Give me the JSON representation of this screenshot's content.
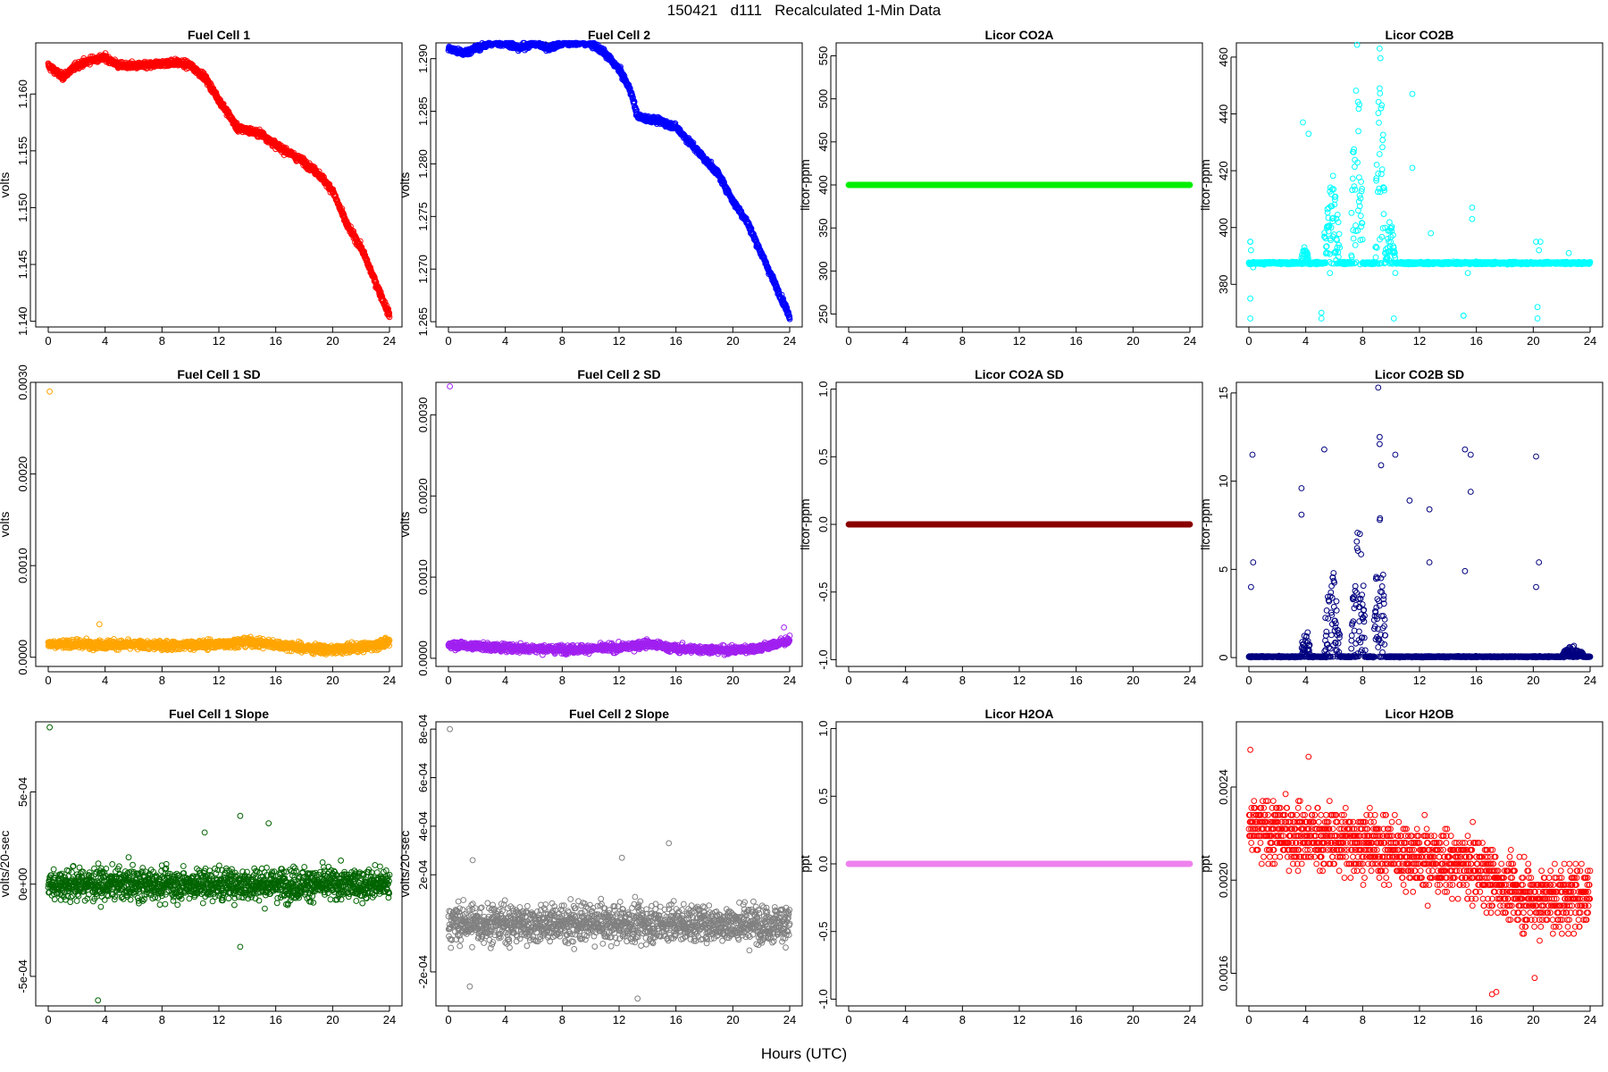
{
  "title": "150421   d111   Recalculated 1-Min Data",
  "xlabel": "Hours (UTC)",
  "chart_data": [
    {
      "type": "scatter",
      "title": "Fuel Cell 1",
      "ylabel": "volts",
      "color": "#ff0000",
      "xlim": [
        0,
        24
      ],
      "ylim": [
        1.1395,
        1.1645
      ],
      "xticks": [
        "0",
        "4",
        "8",
        "12",
        "16",
        "20",
        "24"
      ],
      "yticks": [
        {
          "v": 1.14,
          "label": "1.140"
        },
        {
          "v": 1.145,
          "label": "1.145"
        },
        {
          "v": 1.15,
          "label": "1.150"
        },
        {
          "v": 1.155,
          "label": "1.155"
        },
        {
          "v": 1.16,
          "label": "1.160"
        }
      ],
      "trend": {
        "x": [
          0,
          0.5,
          1,
          2,
          3,
          4,
          5,
          6,
          7,
          8,
          9,
          10,
          11,
          12,
          12.8,
          13.3,
          14,
          15,
          16,
          17,
          18,
          19,
          20,
          21,
          22,
          23,
          24
        ],
        "y": [
          1.1625,
          1.162,
          1.1615,
          1.1625,
          1.163,
          1.1632,
          1.1625,
          1.1625,
          1.1625,
          1.1627,
          1.1628,
          1.1625,
          1.1615,
          1.1595,
          1.158,
          1.157,
          1.1568,
          1.1565,
          1.1555,
          1.1548,
          1.154,
          1.153,
          1.1515,
          1.1485,
          1.1465,
          1.1435,
          1.1405
        ]
      },
      "noise": 0.0003,
      "outliers": []
    },
    {
      "type": "scatter",
      "title": "Fuel Cell 2",
      "ylabel": "volts",
      "color": "#0000ff",
      "xlim": [
        0,
        24
      ],
      "ylim": [
        1.2645,
        1.2915
      ],
      "xticks": [
        "0",
        "4",
        "8",
        "12",
        "16",
        "20",
        "24"
      ],
      "yticks": [
        {
          "v": 1.265,
          "label": "1.265"
        },
        {
          "v": 1.27,
          "label": "1.270"
        },
        {
          "v": 1.275,
          "label": "1.275"
        },
        {
          "v": 1.28,
          "label": "1.280"
        },
        {
          "v": 1.285,
          "label": "1.285"
        },
        {
          "v": 1.29,
          "label": "1.290"
        }
      ],
      "trend": {
        "x": [
          0,
          1,
          2,
          3,
          4,
          5,
          6,
          7,
          8,
          9,
          10,
          11,
          12,
          12.8,
          13.3,
          14,
          15,
          16,
          17,
          18,
          19,
          20,
          21,
          22,
          23,
          24
        ],
        "y": [
          1.291,
          1.2905,
          1.291,
          1.2915,
          1.2915,
          1.291,
          1.2915,
          1.291,
          1.2915,
          1.2915,
          1.2915,
          1.2905,
          1.289,
          1.287,
          1.2845,
          1.2843,
          1.284,
          1.2835,
          1.282,
          1.2805,
          1.279,
          1.2765,
          1.2745,
          1.2715,
          1.2685,
          1.2655
        ]
      },
      "noise": 0.0003,
      "outliers": []
    },
    {
      "type": "scatter",
      "title": "Licor CO2A",
      "ylabel": "licor-ppm",
      "color": "#00ee00",
      "xlim": [
        0,
        24
      ],
      "ylim": [
        235,
        565
      ],
      "xticks": [
        "0",
        "4",
        "8",
        "12",
        "16",
        "20",
        "24"
      ],
      "yticks": [
        {
          "v": 250,
          "label": "250"
        },
        {
          "v": 300,
          "label": "300"
        },
        {
          "v": 350,
          "label": "350"
        },
        {
          "v": 400,
          "label": "400"
        },
        {
          "v": 450,
          "label": "450"
        },
        {
          "v": 500,
          "label": "500"
        },
        {
          "v": 550,
          "label": "550"
        }
      ],
      "trend": {
        "x": [
          0,
          24
        ],
        "y": [
          400,
          400
        ]
      },
      "noise": 0,
      "outliers": []
    },
    {
      "type": "scatter",
      "title": "Licor CO2B",
      "ylabel": "licor-ppm",
      "color": "#00ffff",
      "xlim": [
        0,
        24
      ],
      "ylim": [
        365,
        465
      ],
      "xticks": [
        "0",
        "4",
        "8",
        "12",
        "16",
        "20",
        "24"
      ],
      "yticks": [
        {
          "v": 380,
          "label": "380"
        },
        {
          "v": 400,
          "label": "400"
        },
        {
          "v": 420,
          "label": "420"
        },
        {
          "v": 440,
          "label": "440"
        },
        {
          "v": 460,
          "label": "460"
        }
      ],
      "trend": {
        "x": [
          0,
          24
        ],
        "y": [
          387.5,
          387.5
        ]
      },
      "noise": 0.4,
      "bursts": [
        {
          "x0": 3.7,
          "x1": 4.2,
          "amp": 5
        },
        {
          "x0": 5.3,
          "x1": 6.4,
          "amp": 25
        },
        {
          "x0": 7.2,
          "x1": 8.0,
          "amp": 60
        },
        {
          "x0": 8.9,
          "x1": 9.6,
          "amp": 55
        },
        {
          "x0": 9.6,
          "x1": 10.3,
          "amp": 12
        }
      ],
      "outliers": [
        {
          "x": 0.1,
          "y": 395
        },
        {
          "x": 0.1,
          "y": 395
        },
        {
          "x": 0.15,
          "y": 392
        },
        {
          "x": 0.1,
          "y": 375
        },
        {
          "x": 0.1,
          "y": 368
        },
        {
          "x": 0.3,
          "y": 386
        },
        {
          "x": 3.8,
          "y": 437
        },
        {
          "x": 4.2,
          "y": 433
        },
        {
          "x": 5.1,
          "y": 368
        },
        {
          "x": 5.1,
          "y": 370
        },
        {
          "x": 5.7,
          "y": 384
        },
        {
          "x": 9.2,
          "y": 463
        },
        {
          "x": 9.2,
          "y": 449
        },
        {
          "x": 10.2,
          "y": 368
        },
        {
          "x": 10.3,
          "y": 384
        },
        {
          "x": 11.5,
          "y": 447
        },
        {
          "x": 11.5,
          "y": 421
        },
        {
          "x": 12.8,
          "y": 398
        },
        {
          "x": 15.1,
          "y": 369
        },
        {
          "x": 15.1,
          "y": 369
        },
        {
          "x": 15.4,
          "y": 384
        },
        {
          "x": 15.7,
          "y": 403
        },
        {
          "x": 15.7,
          "y": 407
        },
        {
          "x": 20.2,
          "y": 395
        },
        {
          "x": 20.3,
          "y": 368
        },
        {
          "x": 20.3,
          "y": 372
        },
        {
          "x": 20.5,
          "y": 395
        },
        {
          "x": 20.4,
          "y": 392
        },
        {
          "x": 22.5,
          "y": 391
        }
      ]
    },
    {
      "type": "scatter",
      "title": "Fuel Cell 1 SD",
      "ylabel": "volts",
      "color": "#ffa500",
      "xlim": [
        0,
        24
      ],
      "ylim": [
        -0.0001,
        0.003
      ],
      "xticks": [
        "0",
        "4",
        "8",
        "12",
        "16",
        "20",
        "24"
      ],
      "yticks": [
        {
          "v": 0,
          "label": "0.0000"
        },
        {
          "v": 0.001,
          "label": "0.0010"
        },
        {
          "v": 0.002,
          "label": "0.0020"
        },
        {
          "v": 0.003,
          "label": "0.0030"
        }
      ],
      "trend": {
        "x": [
          0,
          4,
          8,
          12,
          14,
          16,
          18,
          20,
          22,
          24
        ],
        "y": [
          0.00015,
          0.00014,
          0.00013,
          0.00014,
          0.00017,
          0.00014,
          0.0001,
          8e-05,
          0.00011,
          0.00016
        ]
      },
      "noise": 5e-05,
      "outliers": [
        {
          "x": 0.1,
          "y": 0.0029
        },
        {
          "x": 3.6,
          "y": 0.00036
        }
      ]
    },
    {
      "type": "scatter",
      "title": "Fuel Cell 2 SD",
      "ylabel": "volts",
      "color": "#a020f0",
      "xlim": [
        0,
        24
      ],
      "ylim": [
        -0.0001,
        0.0034
      ],
      "xticks": [
        "0",
        "4",
        "8",
        "12",
        "16",
        "20",
        "24"
      ],
      "yticks": [
        {
          "v": 0,
          "label": "0.0000"
        },
        {
          "v": 0.001,
          "label": "0.0010"
        },
        {
          "v": 0.002,
          "label": "0.0020"
        },
        {
          "v": 0.003,
          "label": "0.0030"
        }
      ],
      "trend": {
        "x": [
          0,
          4,
          8,
          12,
          14,
          16,
          20,
          22,
          24
        ],
        "y": [
          0.00017,
          0.00013,
          0.00011,
          0.00013,
          0.00018,
          0.00012,
          0.0001,
          0.00013,
          0.00022
        ]
      },
      "noise": 5e-05,
      "outliers": [
        {
          "x": 0.1,
          "y": 0.00335
        },
        {
          "x": 23.6,
          "y": 0.00038
        }
      ]
    },
    {
      "type": "scatter",
      "title": "Licor CO2A SD",
      "ylabel": "licor-ppm",
      "color": "#8b0000",
      "xlim": [
        0,
        24
      ],
      "ylim": [
        -1.05,
        1.05
      ],
      "xticks": [
        "0",
        "4",
        "8",
        "12",
        "16",
        "20",
        "24"
      ],
      "yticks": [
        {
          "v": -1,
          "label": "-1.0"
        },
        {
          "v": -0.5,
          "label": "-0.5"
        },
        {
          "v": 0,
          "label": "0.0"
        },
        {
          "v": 0.5,
          "label": "0.5"
        },
        {
          "v": 1,
          "label": "1.0"
        }
      ],
      "trend": {
        "x": [
          0,
          24
        ],
        "y": [
          0,
          0
        ]
      },
      "noise": 0,
      "outliers": []
    },
    {
      "type": "scatter",
      "title": "Licor CO2B SD",
      "ylabel": "licor-ppm",
      "color": "#000080",
      "xlim": [
        0,
        24
      ],
      "ylim": [
        -0.5,
        15.6
      ],
      "xticks": [
        "0",
        "4",
        "8",
        "12",
        "16",
        "20",
        "24"
      ],
      "yticks": [
        {
          "v": 0,
          "label": "0"
        },
        {
          "v": 5,
          "label": "5"
        },
        {
          "v": 10,
          "label": "10"
        },
        {
          "v": 15,
          "label": "15"
        }
      ],
      "trend": {
        "x": [
          0,
          24
        ],
        "y": [
          0.05,
          0.05
        ]
      },
      "noise": 0.03,
      "bursts": [
        {
          "x0": 3.7,
          "x1": 4.3,
          "amp": 1.5
        },
        {
          "x0": 5.3,
          "x1": 6.4,
          "amp": 4
        },
        {
          "x0": 7.2,
          "x1": 8.2,
          "amp": 6
        },
        {
          "x0": 8.8,
          "x1": 9.6,
          "amp": 6
        },
        {
          "x0": 22,
          "x1": 23.5,
          "amp": 0.5
        }
      ],
      "outliers": [
        {
          "x": 0.15,
          "y": 4
        },
        {
          "x": 0.3,
          "y": 5.4
        },
        {
          "x": 0.25,
          "y": 11.5
        },
        {
          "x": 3.7,
          "y": 9.6
        },
        {
          "x": 3.7,
          "y": 8.1
        },
        {
          "x": 5.3,
          "y": 11.8
        },
        {
          "x": 9.1,
          "y": 15.3
        },
        {
          "x": 9.2,
          "y": 12.5
        },
        {
          "x": 9.2,
          "y": 12.1
        },
        {
          "x": 9.3,
          "y": 10.9
        },
        {
          "x": 10.3,
          "y": 11.5
        },
        {
          "x": 11.3,
          "y": 8.9
        },
        {
          "x": 12.7,
          "y": 8.4
        },
        {
          "x": 12.7,
          "y": 5.4
        },
        {
          "x": 15.2,
          "y": 11.8
        },
        {
          "x": 15.6,
          "y": 11.5
        },
        {
          "x": 15.6,
          "y": 9.4
        },
        {
          "x": 20.2,
          "y": 11.4
        },
        {
          "x": 20.2,
          "y": 4
        },
        {
          "x": 20.4,
          "y": 5.4
        },
        {
          "x": 15.2,
          "y": 4.9
        }
      ]
    },
    {
      "type": "scatter",
      "title": "Fuel Cell 1 Slope",
      "ylabel": "volts/20-sec",
      "color": "#006400",
      "xlim": [
        0,
        24
      ],
      "ylim": [
        -0.00066,
        0.00088
      ],
      "xticks": [
        "0",
        "4",
        "8",
        "12",
        "16",
        "20",
        "24"
      ],
      "yticks": [
        {
          "v": -0.0005,
          "label": "-5e-04"
        },
        {
          "v": 0,
          "label": "0e+00"
        },
        {
          "v": 0.0005,
          "label": "5e-04"
        }
      ],
      "trend": {
        "x": [
          0,
          24
        ],
        "y": [
          0,
          0
        ]
      },
      "noise": 9e-05,
      "outliers": [
        {
          "x": 0.1,
          "y": 0.00085
        },
        {
          "x": 3.5,
          "y": -0.00063
        },
        {
          "x": 13.5,
          "y": 0.00037
        },
        {
          "x": 15.5,
          "y": 0.00033
        },
        {
          "x": 11,
          "y": 0.00028
        },
        {
          "x": 13.5,
          "y": -0.00034
        }
      ]
    },
    {
      "type": "scatter",
      "title": "Fuel Cell 2 Slope",
      "ylabel": "volts/20-sec",
      "color": "#808080",
      "xlim": [
        0,
        24
      ],
      "ylim": [
        -0.00034,
        0.00083
      ],
      "xticks": [
        "0",
        "4",
        "8",
        "12",
        "16",
        "20",
        "24"
      ],
      "yticks": [
        {
          "v": -0.0002,
          "label": "-2e-04"
        },
        {
          "v": 0.0002,
          "label": "2e-04"
        },
        {
          "v": 0.0004,
          "label": "4e-04"
        },
        {
          "v": 0.0006,
          "label": "6e-04"
        },
        {
          "v": 0.0008,
          "label": "8e-04"
        }
      ],
      "trend": {
        "x": [
          0,
          24
        ],
        "y": [
          0,
          0
        ]
      },
      "noise": 8e-05,
      "outliers": [
        {
          "x": 0.1,
          "y": 0.0008
        },
        {
          "x": 15.5,
          "y": 0.00033
        },
        {
          "x": 13.3,
          "y": -0.00031
        },
        {
          "x": 1.5,
          "y": -0.00026
        },
        {
          "x": 1.7,
          "y": 0.00026
        },
        {
          "x": 12.2,
          "y": 0.00027
        }
      ]
    },
    {
      "type": "scatter",
      "title": "Licor H2OA",
      "ylabel": "ppt",
      "color": "#ee82ee",
      "xlim": [
        0,
        24
      ],
      "ylim": [
        -1.05,
        1.05
      ],
      "xticks": [
        "0",
        "4",
        "8",
        "12",
        "16",
        "20",
        "24"
      ],
      "yticks": [
        {
          "v": -1,
          "label": "-1.0"
        },
        {
          "v": -0.5,
          "label": "-0.5"
        },
        {
          "v": 0,
          "label": "0.0"
        },
        {
          "v": 0.5,
          "label": "0.5"
        },
        {
          "v": 1,
          "label": "1.0"
        }
      ],
      "trend": {
        "x": [
          0,
          24
        ],
        "y": [
          0,
          0
        ]
      },
      "noise": 0,
      "outliers": []
    },
    {
      "type": "scatter",
      "title": "Licor H2OB",
      "ylabel": "ppt",
      "color": "#ff0000",
      "xlim": [
        0,
        24
      ],
      "ylim": [
        0.00146,
        0.00268
      ],
      "xticks": [
        "0",
        "4",
        "8",
        "12",
        "16",
        "20",
        "24"
      ],
      "yticks": [
        {
          "v": 0.0016,
          "label": "0.0016"
        },
        {
          "v": 0.002,
          "label": "0.0020"
        },
        {
          "v": 0.0024,
          "label": "0.0024"
        }
      ],
      "trend": {
        "x": [
          0,
          4,
          8,
          12,
          16,
          18,
          20,
          22,
          24
        ],
        "y": [
          0.00222,
          0.00219,
          0.00216,
          0.0021,
          0.00205,
          0.00197,
          0.00192,
          0.00192,
          0.00195
        ]
      },
      "noise": 0.00014,
      "quant": 3e-05,
      "outliers": [
        {
          "x": 0.1,
          "y": 0.00256
        },
        {
          "x": 17.1,
          "y": 0.00151
        },
        {
          "x": 17.4,
          "y": 0.00152
        },
        {
          "x": 20.1,
          "y": 0.00158
        },
        {
          "x": 4.2,
          "y": 0.00253
        }
      ]
    }
  ]
}
